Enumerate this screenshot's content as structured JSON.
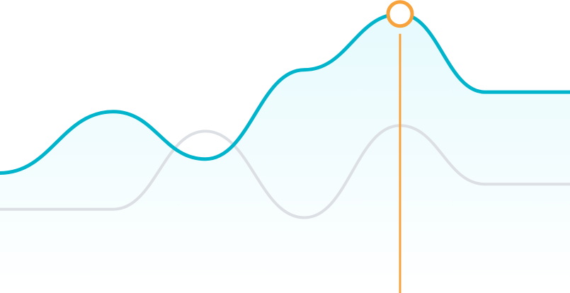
{
  "chart_data": {
    "type": "line",
    "x": [
      0,
      1,
      2,
      3,
      4,
      5,
      6
    ],
    "series": [
      {
        "values": [
          43,
          65,
          48,
          80,
          100,
          72,
          72
        ],
        "color": "#00b4cc",
        "area": true,
        "area_color": "#e8fbfd"
      },
      {
        "values": [
          30,
          30,
          58,
          27,
          60,
          39,
          39
        ],
        "color": "#dcdfe4",
        "area": false
      }
    ],
    "ylim": [
      0,
      105
    ],
    "grid": false,
    "highlight": {
      "index": 4,
      "series": 0,
      "color": "#f7a23b"
    }
  }
}
